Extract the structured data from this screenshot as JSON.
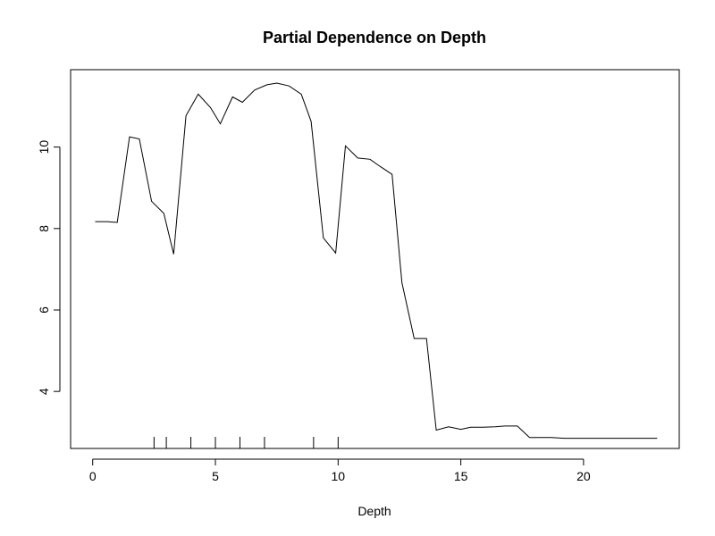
{
  "chart_data": {
    "type": "line",
    "title": "Partial Dependence on Depth",
    "xlabel": "Depth",
    "ylabel": "",
    "xlim": [
      -0.9,
      23.9
    ],
    "ylim": [
      2.6,
      11.9
    ],
    "x_ticks": [
      0,
      5,
      10,
      15,
      20
    ],
    "y_ticks": [
      4,
      6,
      8,
      10
    ],
    "grid": false,
    "legend": "none",
    "line_color": "#000000",
    "series": [
      {
        "x": [
          0.1,
          0.6,
          1.0,
          1.5,
          1.9,
          2.4,
          2.9,
          3.3,
          3.8,
          4.3,
          4.8,
          5.2,
          5.7,
          6.1,
          6.6,
          7.1,
          7.5,
          8.0,
          8.5,
          8.9,
          9.4,
          9.9,
          10.3,
          10.8,
          11.3,
          11.7,
          12.2,
          12.6,
          13.1,
          13.6,
          14.0,
          14.5,
          15.0,
          15.4,
          15.9,
          16.4,
          16.8,
          17.3,
          17.8,
          18.2,
          18.7,
          19.2,
          19.6,
          20.1,
          20.6,
          21.0,
          21.5,
          22.0,
          22.4,
          23.0
        ],
        "values": [
          8.17,
          8.17,
          8.15,
          10.25,
          10.2,
          8.67,
          8.37,
          7.37,
          10.77,
          11.3,
          10.97,
          10.57,
          11.23,
          11.1,
          11.4,
          11.53,
          11.57,
          11.5,
          11.3,
          10.63,
          7.77,
          7.4,
          10.03,
          9.73,
          9.7,
          9.53,
          9.33,
          6.67,
          5.3,
          5.3,
          3.05,
          3.13,
          3.07,
          3.12,
          3.12,
          3.13,
          3.15,
          3.15,
          2.87,
          2.87,
          2.87,
          2.85,
          2.85,
          2.85,
          2.85,
          2.85,
          2.85,
          2.85,
          2.85,
          2.85
        ]
      }
    ],
    "rug": [
      2.5,
      3.0,
      4.0,
      5.0,
      6.0,
      7.0,
      9.0,
      10.0
    ]
  }
}
